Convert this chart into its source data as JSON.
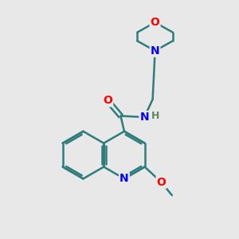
{
  "bg_color": "#e8e8e8",
  "bond_color": "#2d7d7d",
  "N_color": "#0000ff",
  "O_color": "#ff0000",
  "H_color": "#5a8a5a",
  "bond_width": 1.8,
  "font_size": 10,
  "fig_size": [
    3.0,
    3.0
  ],
  "dpi": 100,
  "xlim": [
    0,
    10
  ],
  "ylim": [
    0,
    10
  ]
}
